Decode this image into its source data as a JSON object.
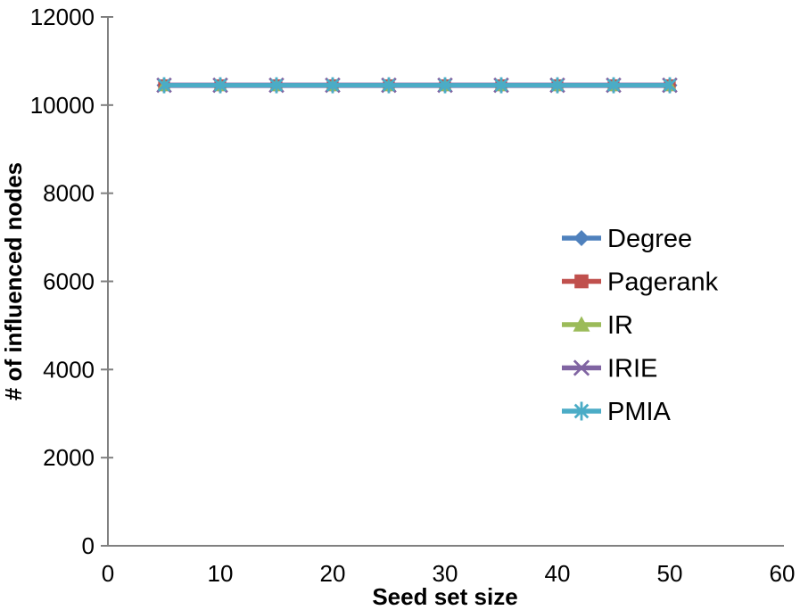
{
  "figure": {
    "background": "#ffffff",
    "axis_color": "#808080",
    "text_color": "#000000"
  },
  "chart_data": {
    "type": "line",
    "title": "",
    "xlabel": "Seed set size",
    "ylabel": "# of influenced nodes",
    "xlim": [
      0,
      60
    ],
    "ylim": [
      0,
      12000
    ],
    "xticks": [
      0,
      10,
      20,
      30,
      40,
      50,
      60
    ],
    "yticks": [
      0,
      2000,
      4000,
      6000,
      8000,
      10000,
      12000
    ],
    "grid": false,
    "legend_position": "middle-right",
    "x": [
      5,
      10,
      15,
      20,
      25,
      30,
      35,
      40,
      45,
      50
    ],
    "series": [
      {
        "name": "Degree",
        "color": "#4F81BD",
        "marker": "diamond",
        "values": [
          10450,
          10450,
          10450,
          10450,
          10450,
          10450,
          10450,
          10450,
          10450,
          10450
        ]
      },
      {
        "name": "Pagerank",
        "color": "#C0504D",
        "marker": "square",
        "values": [
          10450,
          10450,
          10450,
          10450,
          10450,
          10450,
          10450,
          10450,
          10450,
          10450
        ]
      },
      {
        "name": "IR",
        "color": "#9BBB59",
        "marker": "triangle-up",
        "values": [
          10450,
          10450,
          10450,
          10450,
          10450,
          10450,
          10450,
          10450,
          10450,
          10450
        ]
      },
      {
        "name": "IRIE",
        "color": "#8064A2",
        "marker": "x-cross",
        "values": [
          10450,
          10450,
          10450,
          10450,
          10450,
          10450,
          10450,
          10450,
          10450,
          10450
        ]
      },
      {
        "name": "PMIA",
        "color": "#4BACC6",
        "marker": "asterisk",
        "values": [
          10450,
          10450,
          10450,
          10450,
          10450,
          10450,
          10450,
          10450,
          10450,
          10450
        ]
      }
    ]
  }
}
